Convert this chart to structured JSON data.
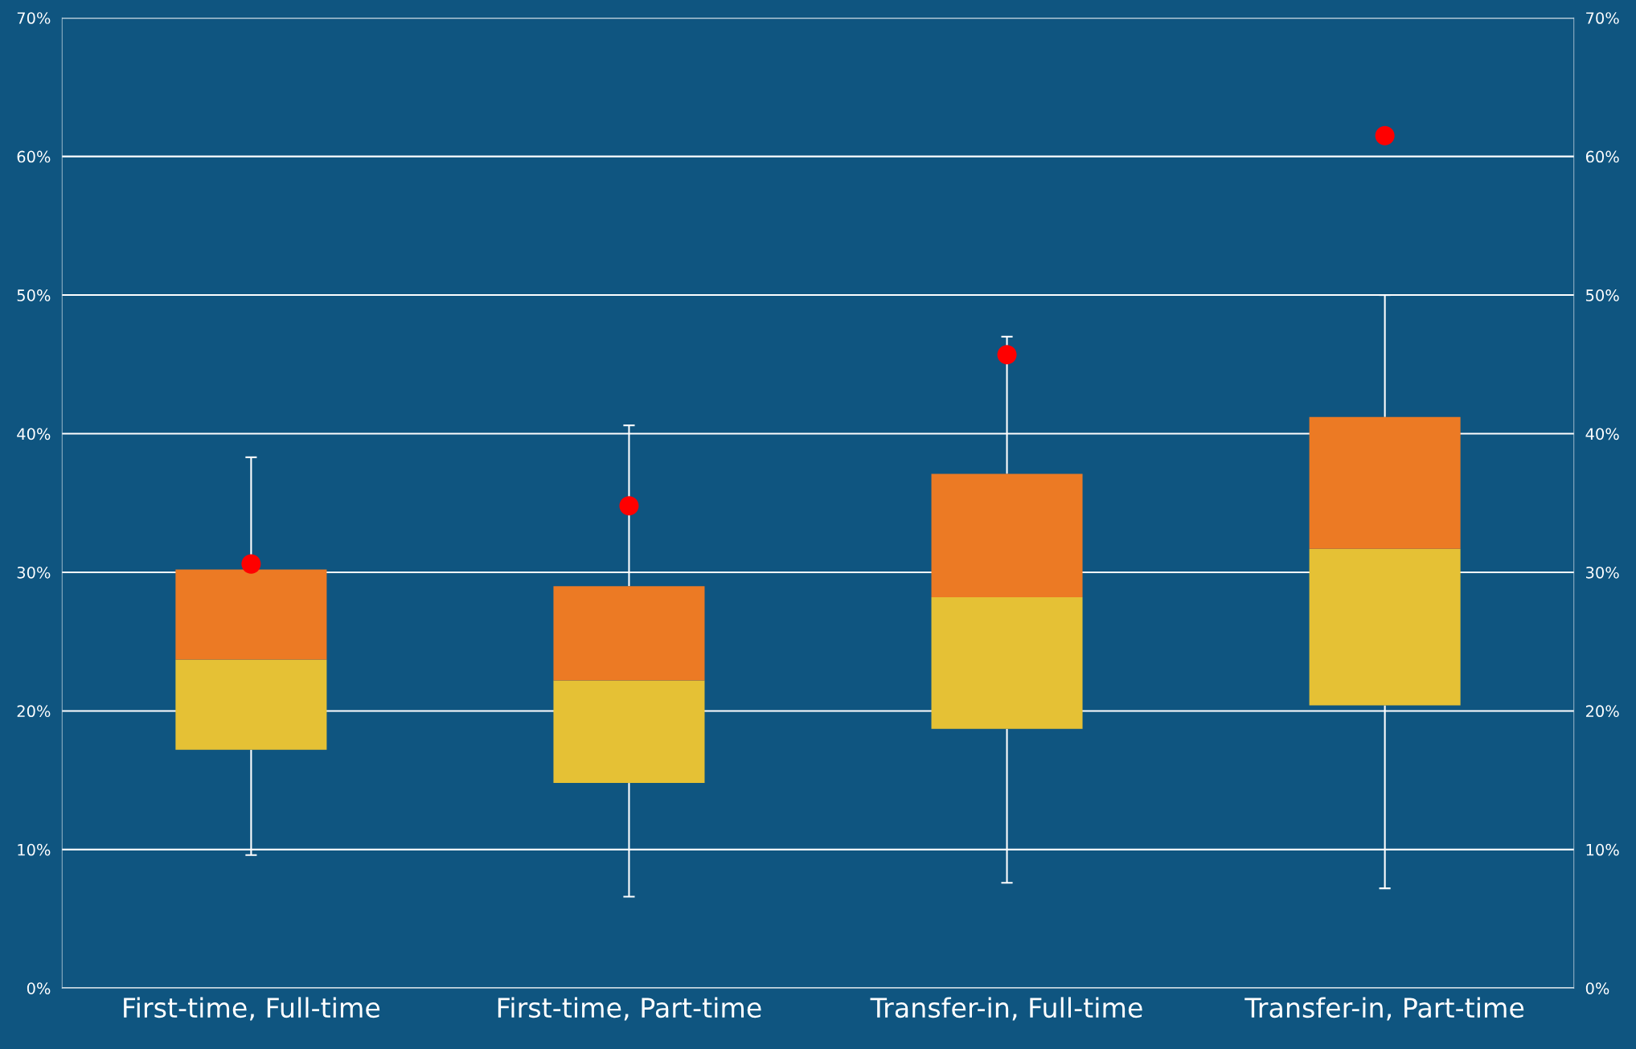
{
  "chart_data": {
    "type": "box",
    "categories": [
      "First-time, Full-time",
      "First-time, Part-time",
      "Transfer-in, Full-time",
      "Transfer-in, Part-time"
    ],
    "series": [
      {
        "colors": [
          [
            "#e5c135",
            "#ec7a24"
          ],
          [
            "#e5c135",
            "#ec7a24"
          ],
          [
            "#e5c135",
            "#ec7a24"
          ],
          [
            "#e5c135",
            "#ec7a24"
          ]
        ],
        "boxes": [
          {
            "low": 9.6,
            "q1": 17.2,
            "median": 23.7,
            "q3": 30.2,
            "high": 38.3
          },
          {
            "low": 6.6,
            "q1": 14.8,
            "median": 22.2,
            "q3": 29.0,
            "high": 40.6
          },
          {
            "low": 7.6,
            "q1": 18.7,
            "median": 28.2,
            "q3": 37.1,
            "high": 47.0
          },
          {
            "low": 7.2,
            "q1": 20.4,
            "median": 31.7,
            "q3": 41.2,
            "high": 50.0
          }
        ]
      },
      {
        "type": "scatter",
        "color": "#ff0000",
        "x": [
          "First-time, Full-time",
          "First-time, Part-time",
          "Transfer-in, Full-time",
          "Transfer-in, Part-time"
        ],
        "values": [
          30.6,
          34.8,
          45.7,
          61.5
        ]
      }
    ],
    "ylim": [
      0,
      70
    ],
    "yticks": [
      {
        "value": 0,
        "label": "0%"
      },
      {
        "value": 10,
        "label": "10%"
      },
      {
        "value": 20,
        "label": "20%"
      },
      {
        "value": 30,
        "label": "30%"
      },
      {
        "value": 40,
        "label": "40%"
      },
      {
        "value": 50,
        "label": "50%"
      },
      {
        "value": 60,
        "label": "60%"
      },
      {
        "value": 70,
        "label": "70%"
      }
    ],
    "y2lim": [
      0,
      70
    ],
    "y2ticks": [
      {
        "value": 0,
        "label": "0%"
      },
      {
        "value": 10,
        "label": "10%"
      },
      {
        "value": 20,
        "label": "20%"
      },
      {
        "value": 30,
        "label": "30%"
      },
      {
        "value": 40,
        "label": "40%"
      },
      {
        "value": 50,
        "label": "50%"
      },
      {
        "value": 60,
        "label": "60%"
      },
      {
        "value": 70,
        "label": "70%"
      }
    ],
    "grid": "y"
  }
}
